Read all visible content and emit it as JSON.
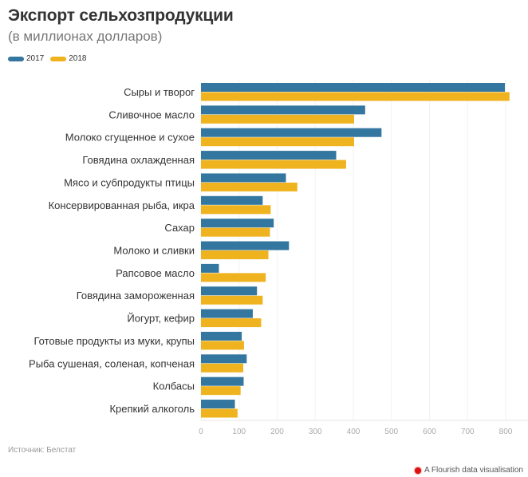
{
  "colors": {
    "2017": "#33769f",
    "2018": "#efb31f"
  },
  "chart_data": {
    "type": "bar",
    "orientation": "horizontal",
    "title": "Экспорт сельхозпродукции",
    "subtitle": "(в миллионах долларов)",
    "categories": [
      "Сыры и творог",
      "Сливочное масло",
      "Молоко сгущенное и сухое",
      "Говядина охлажденная",
      "Мясо и субпродукты птицы",
      "Консервированная рыба, икра",
      "Сахар",
      "Молоко и сливки",
      "Рапсовое масло",
      "Говядина замороженная",
      "Йогурт, кефир",
      "Готовые продукты из муки, крупы",
      "Рыба сушеная, соленая, копченая",
      "Колбасы",
      "Крепкий алкоголь"
    ],
    "series": [
      {
        "name": "2017",
        "values": [
          798,
          431,
          474,
          355,
          223,
          162,
          191,
          231,
          47,
          147,
          136,
          107,
          120,
          112,
          89
        ]
      },
      {
        "name": "2018",
        "values": [
          810,
          402,
          402,
          381,
          253,
          183,
          181,
          177,
          170,
          162,
          158,
          113,
          111,
          104,
          96
        ]
      }
    ],
    "xlim": [
      0,
      850
    ],
    "ticks": [
      "0",
      "100",
      "200",
      "300",
      "400",
      "500",
      "600",
      "700",
      "800"
    ],
    "grid": true,
    "legend": "top-left"
  },
  "source": "Источник: Белстат",
  "credit": "A Flourish data visualisation"
}
